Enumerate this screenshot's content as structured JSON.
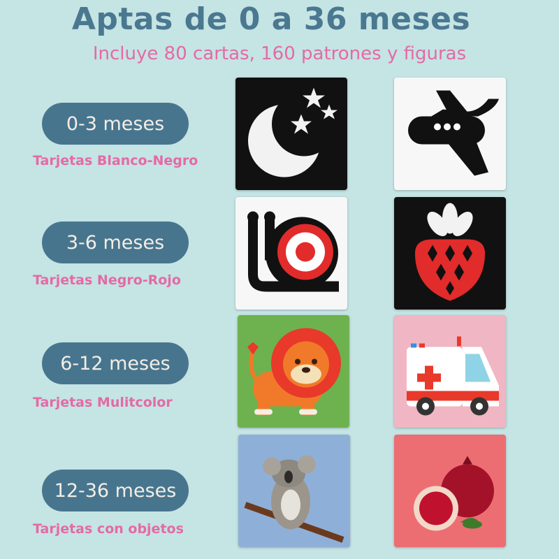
{
  "header": {
    "title": "Aptas de 0 a 36 meses",
    "subtitle": "Incluye 80 cartas, 160 patrones y figuras"
  },
  "stages": [
    {
      "age": "0-3 meses",
      "label": "Tarjetas Blanco-Negro",
      "cards": [
        "moon-stars-card",
        "airplane-card"
      ]
    },
    {
      "age": "3-6 meses",
      "label": "Tarjetas Negro-Rojo",
      "cards": [
        "snail-card",
        "strawberry-card"
      ]
    },
    {
      "age": "6-12 meses",
      "label": "Tarjetas Mulitcolor",
      "cards": [
        "lion-card",
        "ambulance-card"
      ]
    },
    {
      "age": "12-36 meses",
      "label": "Tarjetas con objetos",
      "cards": [
        "koala-photo-card",
        "pomegranate-photo-card"
      ]
    }
  ],
  "colors": {
    "background": "#c5e4e4",
    "title": "#4a7890",
    "pill": "#48758e",
    "accent_pink": "#e46aa6"
  }
}
